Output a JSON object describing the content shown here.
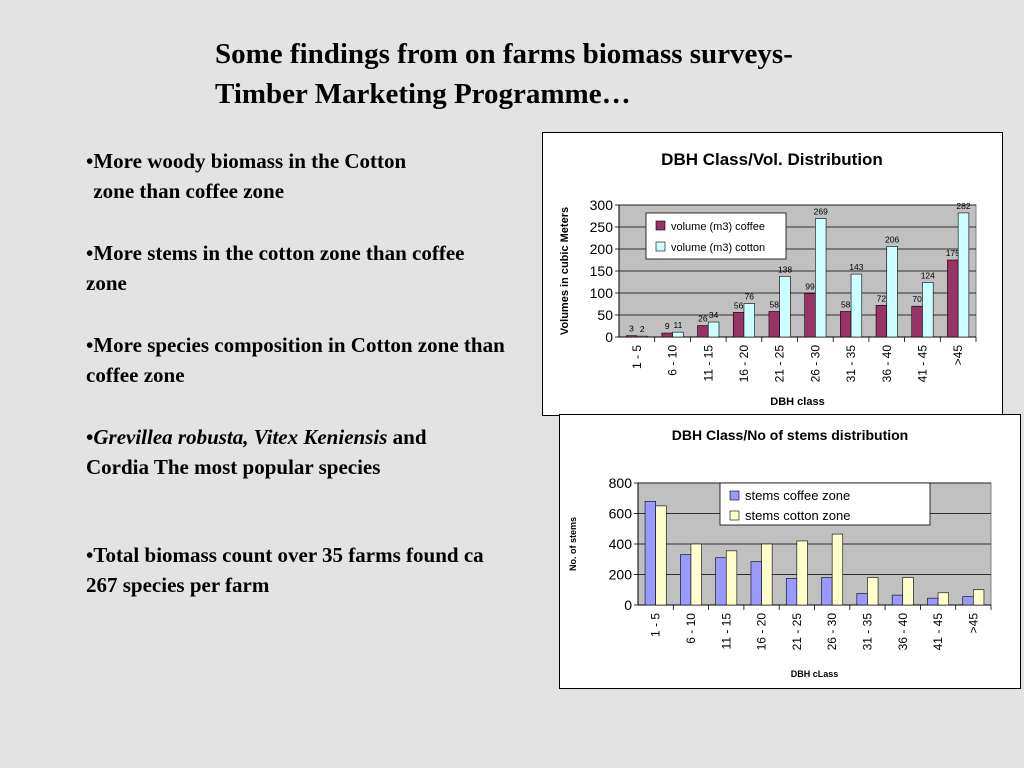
{
  "slide": {
    "title_line1": "Some findings from on farms biomass surveys-",
    "title_line2": "Timber Marketing Programme…",
    "bullets": [
      {
        "prefix": "•",
        "text": "More woody biomass in the Cotton zone than coffee zone"
      },
      {
        "prefix": "•",
        "text": "More stems in the cotton zone than coffee zone"
      },
      {
        "prefix": "•",
        "text": "More species composition  in Cotton zone than coffee zone"
      },
      {
        "prefix": "•",
        "italic": "Grevillea robusta, Vitex Keniensis",
        "text": "and Cordia The most popular species"
      },
      {
        "prefix": "•",
        "text": "Total biomass count over 35 farms found ca 267 species per farm"
      }
    ]
  },
  "chart_data": [
    {
      "type": "bar",
      "title": "DBH Class/Vol. Distribution",
      "xlabel": "DBH class",
      "ylabel": "Volumes in cubic Meters",
      "ylim": [
        0,
        300
      ],
      "yticks": [
        0,
        50,
        100,
        150,
        200,
        250,
        300
      ],
      "grid": true,
      "legend_position": "top-left",
      "categories": [
        "1 - 5",
        "6 - 10",
        "11 - 15",
        "16 - 20",
        "21 - 25",
        "26 - 30",
        "31 - 35",
        "36 - 40",
        "41 - 45",
        ">45"
      ],
      "series": [
        {
          "name": "volume (m3) coffee",
          "color": "#993366",
          "values": [
            3,
            9,
            26,
            56,
            58,
            99,
            58,
            72,
            70,
            175
          ]
        },
        {
          "name": "volume (m3) cotton",
          "color": "#ccffff",
          "values": [
            2,
            11,
            34,
            76,
            138,
            269,
            143,
            206,
            124,
            282
          ]
        }
      ],
      "data_labels": true
    },
    {
      "type": "bar",
      "title": "DBH Class/No of stems distribution",
      "xlabel": "DBH cLass",
      "ylabel": "No. of stems",
      "ylim": [
        0,
        800
      ],
      "yticks": [
        0,
        200,
        400,
        600,
        800
      ],
      "grid": true,
      "legend_position": "top-right",
      "categories": [
        "1 - 5",
        "6 - 10",
        "11 - 15",
        "16 - 20",
        "21 - 25",
        "26 - 30",
        "31 - 35",
        "36 - 40",
        "41 - 45",
        ">45"
      ],
      "series": [
        {
          "name": "stems coffee zone",
          "color": "#9999ff",
          "values": [
            680,
            330,
            310,
            285,
            175,
            180,
            75,
            65,
            45,
            55
          ]
        },
        {
          "name": "stems cotton zone",
          "color": "#ffffcc",
          "values": [
            650,
            400,
            355,
            400,
            420,
            465,
            180,
            180,
            80,
            100
          ]
        }
      ],
      "data_labels": false
    }
  ]
}
